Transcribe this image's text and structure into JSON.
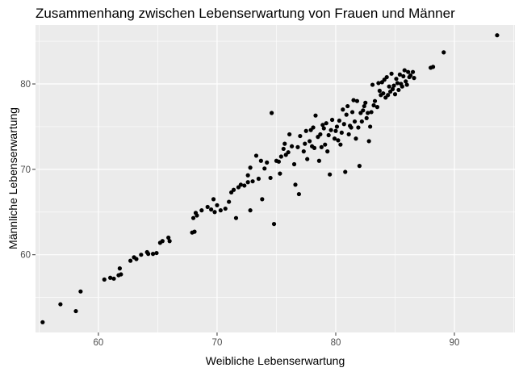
{
  "chart_data": {
    "type": "scatter",
    "title": "Zusammenhang zwischen Lebenserwartung von Frauen und Männer",
    "xlabel": "Weibliche Lebenserwartung",
    "ylabel": "Männliche Lebenserwartung",
    "xlim": [
      54.7,
      95.1
    ],
    "ylim": [
      50.9,
      86.9
    ],
    "xticks": [
      60,
      70,
      80,
      90
    ],
    "yticks": [
      60,
      70,
      80
    ],
    "grid": true,
    "legend": "none",
    "colors": {
      "panel": "#ebebeb",
      "grid": "#ffffff",
      "point": "#000000",
      "tick": "#4d4d4d"
    },
    "points": [
      [
        55.3,
        52.1
      ],
      [
        56.8,
        54.2
      ],
      [
        58.1,
        53.4
      ],
      [
        58.5,
        55.7
      ],
      [
        60.5,
        57.1
      ],
      [
        61.0,
        57.3
      ],
      [
        61.3,
        57.2
      ],
      [
        61.7,
        57.6
      ],
      [
        61.8,
        58.4
      ],
      [
        61.9,
        57.7
      ],
      [
        62.7,
        59.3
      ],
      [
        63.0,
        59.7
      ],
      [
        63.2,
        59.5
      ],
      [
        63.6,
        60.0
      ],
      [
        64.1,
        60.3
      ],
      [
        64.2,
        60.1
      ],
      [
        64.6,
        60.1
      ],
      [
        64.9,
        60.2
      ],
      [
        65.2,
        61.4
      ],
      [
        65.4,
        61.6
      ],
      [
        65.9,
        62.0
      ],
      [
        66.0,
        61.6
      ],
      [
        67.9,
        62.6
      ],
      [
        68.1,
        62.7
      ],
      [
        68.0,
        64.3
      ],
      [
        68.2,
        64.9
      ],
      [
        68.3,
        64.6
      ],
      [
        68.7,
        65.2
      ],
      [
        69.2,
        65.6
      ],
      [
        69.5,
        65.3
      ],
      [
        69.7,
        66.5
      ],
      [
        69.8,
        65.0
      ],
      [
        70.0,
        65.8
      ],
      [
        70.3,
        65.2
      ],
      [
        70.7,
        65.4
      ],
      [
        71.0,
        66.2
      ],
      [
        71.2,
        67.3
      ],
      [
        71.4,
        67.6
      ],
      [
        71.6,
        64.3
      ],
      [
        71.8,
        67.9
      ],
      [
        72.0,
        68.2
      ],
      [
        72.3,
        68.1
      ],
      [
        72.6,
        68.5
      ],
      [
        72.6,
        69.3
      ],
      [
        72.8,
        65.2
      ],
      [
        72.8,
        70.2
      ],
      [
        73.0,
        68.6
      ],
      [
        73.3,
        71.6
      ],
      [
        73.5,
        68.9
      ],
      [
        73.7,
        71.0
      ],
      [
        73.8,
        66.5
      ],
      [
        74.0,
        70.1
      ],
      [
        74.2,
        70.8
      ],
      [
        74.5,
        69.0
      ],
      [
        74.6,
        76.6
      ],
      [
        74.8,
        63.6
      ],
      [
        75.0,
        71.0
      ],
      [
        75.2,
        70.9
      ],
      [
        75.3,
        69.5
      ],
      [
        75.4,
        71.5
      ],
      [
        75.6,
        72.4
      ],
      [
        75.7,
        73.0
      ],
      [
        75.8,
        71.7
      ],
      [
        76.0,
        72.0
      ],
      [
        76.1,
        74.1
      ],
      [
        76.3,
        72.7
      ],
      [
        76.5,
        70.6
      ],
      [
        76.6,
        68.2
      ],
      [
        76.8,
        72.6
      ],
      [
        76.9,
        67.1
      ],
      [
        77.0,
        73.9
      ],
      [
        77.3,
        72.1
      ],
      [
        77.4,
        73.0
      ],
      [
        77.5,
        74.5
      ],
      [
        77.6,
        71.2
      ],
      [
        77.8,
        73.3
      ],
      [
        77.9,
        74.6
      ],
      [
        78.0,
        72.7
      ],
      [
        78.1,
        74.9
      ],
      [
        78.2,
        72.5
      ],
      [
        78.3,
        76.3
      ],
      [
        78.5,
        73.8
      ],
      [
        78.6,
        71.0
      ],
      [
        78.7,
        74.1
      ],
      [
        78.8,
        72.6
      ],
      [
        78.9,
        75.2
      ],
      [
        79.0,
        74.8
      ],
      [
        79.1,
        72.9
      ],
      [
        79.2,
        75.4
      ],
      [
        79.3,
        72.1
      ],
      [
        79.4,
        74.0
      ],
      [
        79.5,
        69.4
      ],
      [
        79.6,
        74.6
      ],
      [
        79.7,
        75.8
      ],
      [
        79.9,
        73.6
      ],
      [
        80.0,
        74.5
      ],
      [
        80.1,
        75.0
      ],
      [
        80.2,
        73.4
      ],
      [
        80.3,
        75.7
      ],
      [
        80.4,
        72.9
      ],
      [
        80.5,
        74.3
      ],
      [
        80.6,
        77.0
      ],
      [
        80.7,
        75.3
      ],
      [
        80.8,
        69.7
      ],
      [
        80.9,
        76.4
      ],
      [
        81.0,
        77.4
      ],
      [
        81.1,
        74.1
      ],
      [
        81.2,
        75.1
      ],
      [
        81.3,
        74.9
      ],
      [
        81.4,
        76.7
      ],
      [
        81.5,
        78.1
      ],
      [
        81.6,
        75.6
      ],
      [
        81.7,
        73.6
      ],
      [
        81.8,
        78.0
      ],
      [
        81.9,
        74.9
      ],
      [
        82.0,
        70.4
      ],
      [
        82.1,
        76.6
      ],
      [
        82.2,
        75.6
      ],
      [
        82.3,
        76.9
      ],
      [
        82.4,
        77.4
      ],
      [
        82.5,
        77.8
      ],
      [
        82.6,
        76.0
      ],
      [
        82.7,
        76.6
      ],
      [
        82.8,
        73.3
      ],
      [
        82.9,
        75.0
      ],
      [
        83.0,
        76.7
      ],
      [
        83.1,
        79.9
      ],
      [
        83.2,
        77.5
      ],
      [
        83.3,
        78.0
      ],
      [
        83.5,
        77.3
      ],
      [
        83.6,
        80.1
      ],
      [
        83.7,
        79.2
      ],
      [
        83.8,
        78.7
      ],
      [
        83.9,
        80.2
      ],
      [
        84.0,
        78.9
      ],
      [
        84.1,
        80.5
      ],
      [
        84.2,
        78.4
      ],
      [
        84.3,
        80.8
      ],
      [
        84.4,
        78.7
      ],
      [
        84.5,
        79.7
      ],
      [
        84.6,
        79.1
      ],
      [
        84.7,
        81.2
      ],
      [
        84.8,
        79.4
      ],
      [
        84.9,
        79.8
      ],
      [
        85.0,
        78.8
      ],
      [
        85.1,
        80.6
      ],
      [
        85.2,
        80.1
      ],
      [
        85.3,
        79.3
      ],
      [
        85.4,
        81.1
      ],
      [
        85.5,
        80.0
      ],
      [
        85.6,
        79.7
      ],
      [
        85.7,
        80.9
      ],
      [
        85.8,
        81.6
      ],
      [
        85.9,
        80.3
      ],
      [
        86.0,
        79.9
      ],
      [
        86.1,
        81.4
      ],
      [
        86.2,
        80.8
      ],
      [
        86.3,
        81.0
      ],
      [
        86.5,
        81.4
      ],
      [
        86.6,
        80.7
      ],
      [
        88.0,
        81.9
      ],
      [
        88.2,
        82.0
      ],
      [
        89.1,
        83.7
      ],
      [
        93.6,
        85.7
      ]
    ]
  }
}
